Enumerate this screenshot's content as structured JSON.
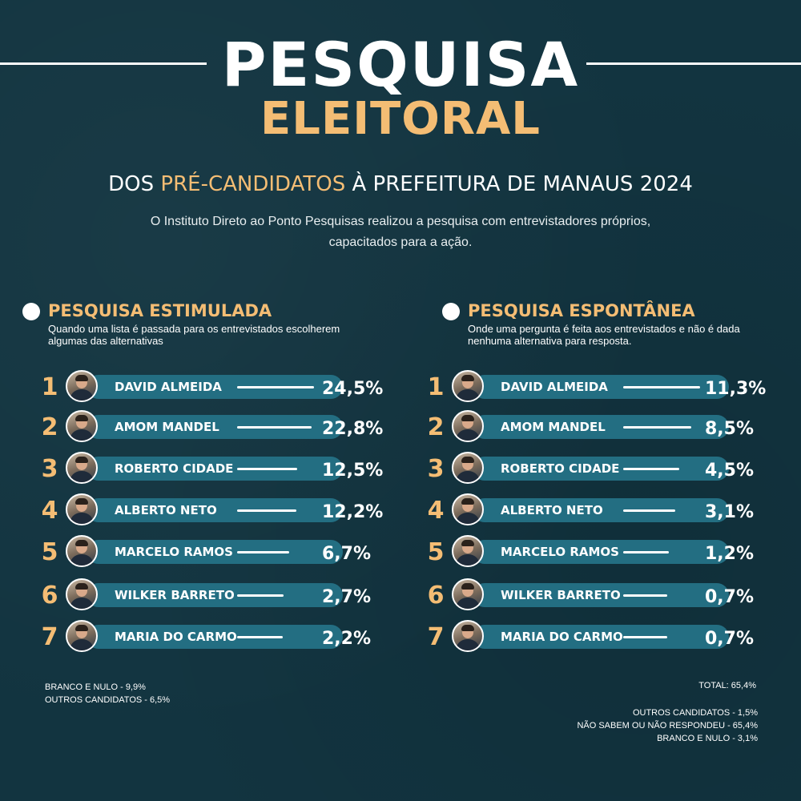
{
  "header": {
    "title_line1": "PESQUISA",
    "title_line2": "ELEITORAL",
    "subtitle_before": "DOS ",
    "subtitle_highlight": "PRÉ-CANDIDATOS",
    "subtitle_after": " À PREFEITURA DE MANAUS 2024",
    "intro": "O Instituto Direto ao Ponto Pesquisas realizou a pesquisa com entrevistadores próprios, capacitados para a ação."
  },
  "colors": {
    "background": "#123440",
    "accent": "#f4bd74",
    "pill": "#236e82",
    "text": "#ffffff"
  },
  "chart_data": [
    {
      "type": "bar",
      "title": "PESQUISA ESTIMULADA",
      "subtitle": "Quando uma lista é passada para os entrevistados escolherem algumas das alternativas",
      "categories": [
        "DAVID ALMEIDA",
        "AMOM MANDEL",
        "ROBERTO CIDADE",
        "ALBERTO NETO",
        "MARCELO RAMOS",
        "WILKER BARRETO",
        "MARIA DO CARMO"
      ],
      "ranks": [
        "1",
        "2",
        "3",
        "4",
        "5",
        "6",
        "7"
      ],
      "values": [
        24.5,
        22.8,
        12.5,
        12.2,
        6.7,
        2.7,
        2.2
      ],
      "value_labels": [
        "24,5%",
        "22,8%",
        "12,5%",
        "12,2%",
        "6,7%",
        "2,7%",
        "2,2%"
      ],
      "notes": [
        "BRANCO E NULO - 9,9%",
        "OUTROS CANDIDATOS - 6,5%"
      ]
    },
    {
      "type": "bar",
      "title": "PESQUISA ESPONTÂNEA",
      "subtitle": "Onde uma pergunta é feita aos entrevistados e não é dada nenhuma alternativa para resposta.",
      "categories": [
        "DAVID ALMEIDA",
        "AMOM MANDEL",
        "ROBERTO CIDADE",
        "ALBERTO NETO",
        "MARCELO RAMOS",
        "WILKER BARRETO",
        "MARIA DO CARMO"
      ],
      "ranks": [
        "1",
        "2",
        "3",
        "4",
        "5",
        "6",
        "7"
      ],
      "values": [
        11.3,
        8.5,
        4.5,
        3.1,
        1.2,
        0.7,
        0.7
      ],
      "value_labels": [
        "11,3%",
        "8,5%",
        "4,5%",
        "3,1%",
        "1,2%",
        "0,7%",
        "0,7%"
      ],
      "total": "TOTAL: 65,4%",
      "notes": [
        "OUTROS CANDIDATOS - 1,5%",
        "NÃO SABEM OU NÃO RESPONDEU - 65,4%",
        "BRANCO E NULO - 3,1%"
      ]
    }
  ]
}
